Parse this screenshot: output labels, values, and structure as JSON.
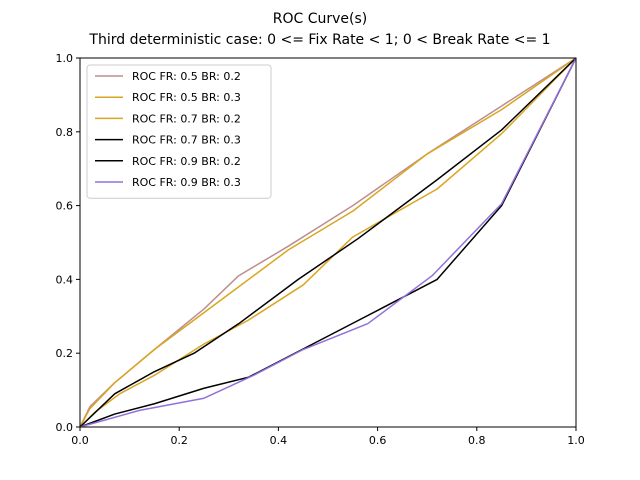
{
  "chart_data": {
    "type": "line",
    "title": "ROC Curve(s)",
    "subtitle": "Third deterministic case: 0 <= Fix Rate < 1; 0 < Break Rate <= 1",
    "xlabel": "",
    "ylabel": "",
    "xlim": [
      0.0,
      1.0
    ],
    "ylim": [
      0.0,
      1.0
    ],
    "x_ticks": [
      "0.0",
      "0.2",
      "0.4",
      "0.6",
      "0.8",
      "1.0"
    ],
    "y_ticks": [
      "0.0",
      "0.2",
      "0.4",
      "0.6",
      "0.8",
      "1.0"
    ],
    "grid": false,
    "legend_position": "top-left",
    "series": [
      {
        "name": "ROC FR: 0.5 BR: 0.2",
        "color": "#bc8f8f",
        "x": [
          0,
          0.02,
          0.07,
          0.15,
          0.25,
          0.32,
          0.42,
          0.55,
          0.7,
          0.85,
          1.0
        ],
        "y": [
          0,
          0.055,
          0.12,
          0.21,
          0.32,
          0.41,
          0.49,
          0.6,
          0.74,
          0.87,
          1.0
        ]
      },
      {
        "name": "ROC FR: 0.5 BR: 0.3",
        "color": "#daa520",
        "x": [
          0,
          0.02,
          0.07,
          0.15,
          0.25,
          0.42,
          0.55,
          0.7,
          0.85,
          1.0
        ],
        "y": [
          0,
          0.05,
          0.12,
          0.21,
          0.31,
          0.48,
          0.585,
          0.74,
          0.86,
          1.0
        ]
      },
      {
        "name": "ROC FR: 0.7 BR: 0.2",
        "color": "#daa520",
        "x": [
          0,
          0.03,
          0.08,
          0.15,
          0.25,
          0.34,
          0.45,
          0.55,
          0.72,
          0.85,
          1.0
        ],
        "y": [
          0,
          0.04,
          0.09,
          0.14,
          0.225,
          0.29,
          0.385,
          0.515,
          0.645,
          0.795,
          1.0
        ]
      },
      {
        "name": "ROC FR: 0.7 BR: 0.3",
        "color": "#000000",
        "x": [
          0,
          0.07,
          0.15,
          0.23,
          0.32,
          0.44,
          0.56,
          0.72,
          0.85,
          1.0
        ],
        "y": [
          0,
          0.09,
          0.15,
          0.2,
          0.28,
          0.4,
          0.51,
          0.67,
          0.805,
          1.0
        ]
      },
      {
        "name": "ROC FR: 0.9 BR: 0.2",
        "color": "#000000",
        "x": [
          0,
          0.07,
          0.15,
          0.25,
          0.34,
          0.57,
          0.72,
          0.85,
          1.0
        ],
        "y": [
          0,
          0.035,
          0.063,
          0.105,
          0.135,
          0.295,
          0.4,
          0.6,
          1.0
        ]
      },
      {
        "name": "ROC FR: 0.9 BR: 0.3",
        "color": "#9370db",
        "x": [
          0,
          0.12,
          0.25,
          0.35,
          0.45,
          0.58,
          0.71,
          0.85,
          1.0
        ],
        "y": [
          0,
          0.045,
          0.078,
          0.14,
          0.21,
          0.28,
          0.41,
          0.605,
          1.0
        ]
      }
    ]
  }
}
